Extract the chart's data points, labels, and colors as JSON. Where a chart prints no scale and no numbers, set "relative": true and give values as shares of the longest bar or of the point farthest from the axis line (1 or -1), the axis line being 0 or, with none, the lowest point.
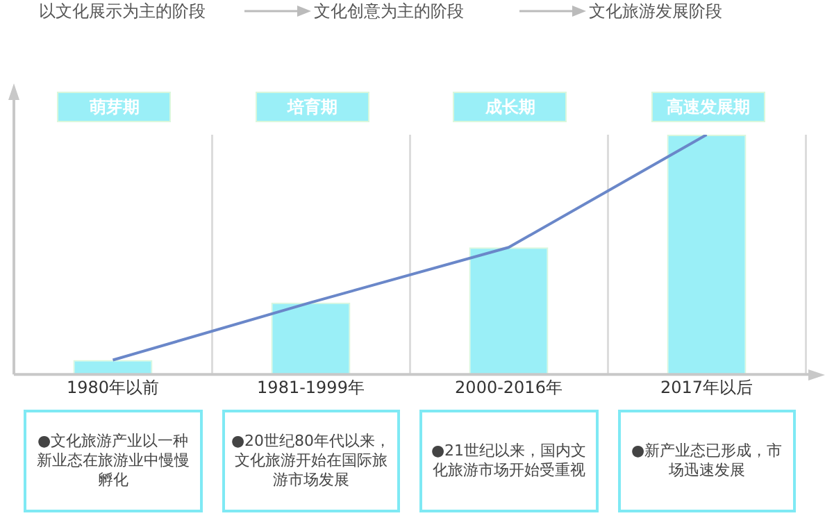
{
  "chart_data": {
    "type": "bar",
    "relative": true,
    "grid": "x",
    "categories": [
      "1980年以前",
      "1981-1999年",
      "2000-2016年",
      "2017年以后"
    ],
    "series": [
      {
        "color": "#9aeff7",
        "values": [
          0.06,
          0.3,
          0.53,
          1
        ]
      },
      {
        "type": "line",
        "color": "#6a87c9",
        "values": [
          0.06,
          0.3,
          0.53,
          1
        ],
        "marker": "none"
      }
    ],
    "annotations": [
      "以文化展示为主的阶段",
      "文化创意为主的阶段",
      "文化旅游发展阶段",
      "萌芽期",
      "培育期",
      "成长期",
      "高速发展期",
      "●文化旅游产业以一种新业态在旅游业中慢慢孵化",
      "●20世纪80年代以来，文化旅游开始在国际旅游市场发展",
      "●21世纪以来，国内文化旅游市场开始受重视",
      "●新产业态已形成，市场迅速发展"
    ]
  }
}
